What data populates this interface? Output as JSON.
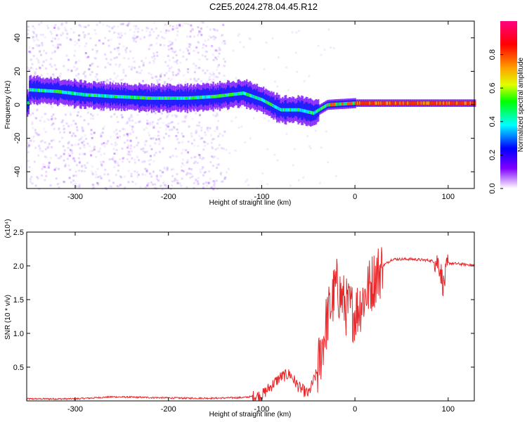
{
  "title": "C2E5.2024.278.04.45.R12",
  "chart_data": [
    {
      "type": "heatmap",
      "xlabel": "Height of straight line (km)",
      "ylabel": "Frequency (Hz)",
      "xlim": [
        -352,
        128
      ],
      "ylim": [
        -50,
        50
      ],
      "xticks": [
        -300,
        -200,
        -100,
        0,
        100
      ],
      "yticks": [
        -40,
        -20,
        0,
        20,
        40
      ],
      "colorbar": {
        "label": "Normalized spectral amplitude",
        "range": [
          0,
          1
        ],
        "ticks": [
          0.0,
          0.2,
          0.4,
          0.6,
          0.8
        ],
        "colormap": [
          "#ff00ff",
          "#ff0000",
          "#ff8000",
          "#ffff00",
          "#00ff00",
          "#00ffff",
          "#0000ff",
          "#8000ff",
          "#ffffff"
        ]
      },
      "ridge": [
        {
          "x": -350,
          "f": 9
        },
        {
          "x": -320,
          "f": 8
        },
        {
          "x": -290,
          "f": 6
        },
        {
          "x": -260,
          "f": 5
        },
        {
          "x": -220,
          "f": 4
        },
        {
          "x": -180,
          "f": 4
        },
        {
          "x": -150,
          "f": 5
        },
        {
          "x": -120,
          "f": 7
        },
        {
          "x": -100,
          "f": 3
        },
        {
          "x": -80,
          "f": -3
        },
        {
          "x": -60,
          "f": -3
        },
        {
          "x": -45,
          "f": -5
        },
        {
          "x": -30,
          "f": 0
        },
        {
          "x": 0,
          "f": 1
        },
        {
          "x": 50,
          "f": 1
        },
        {
          "x": 128,
          "f": 1
        }
      ]
    },
    {
      "type": "line",
      "xlabel": "Height of straight line (km)",
      "ylabel": "SNR (10 * v/v)",
      "y_multiplier": "(x10⁴)",
      "xlim": [
        -352,
        128
      ],
      "ylim": [
        0,
        2.5
      ],
      "xticks": [
        -300,
        -200,
        -100,
        0,
        100
      ],
      "yticks": [
        0.5,
        1.0,
        1.5,
        2.0,
        2.5
      ],
      "color": "#e8282a",
      "x": [
        -352,
        -300,
        -260,
        -220,
        -180,
        -150,
        -120,
        -100,
        -90,
        -80,
        -70,
        -60,
        -50,
        -40,
        -30,
        -20,
        -10,
        0,
        10,
        20,
        30,
        40,
        60,
        80,
        90,
        95,
        100,
        110,
        128
      ],
      "y": [
        0.03,
        0.03,
        0.06,
        0.05,
        0.04,
        0.04,
        0.05,
        0.08,
        0.22,
        0.35,
        0.4,
        0.2,
        0.1,
        0.45,
        1.2,
        1.7,
        1.4,
        1.3,
        1.55,
        1.8,
        2.0,
        2.1,
        2.1,
        2.08,
        2.05,
        1.7,
        2.04,
        2.03,
        2.01
      ]
    }
  ]
}
